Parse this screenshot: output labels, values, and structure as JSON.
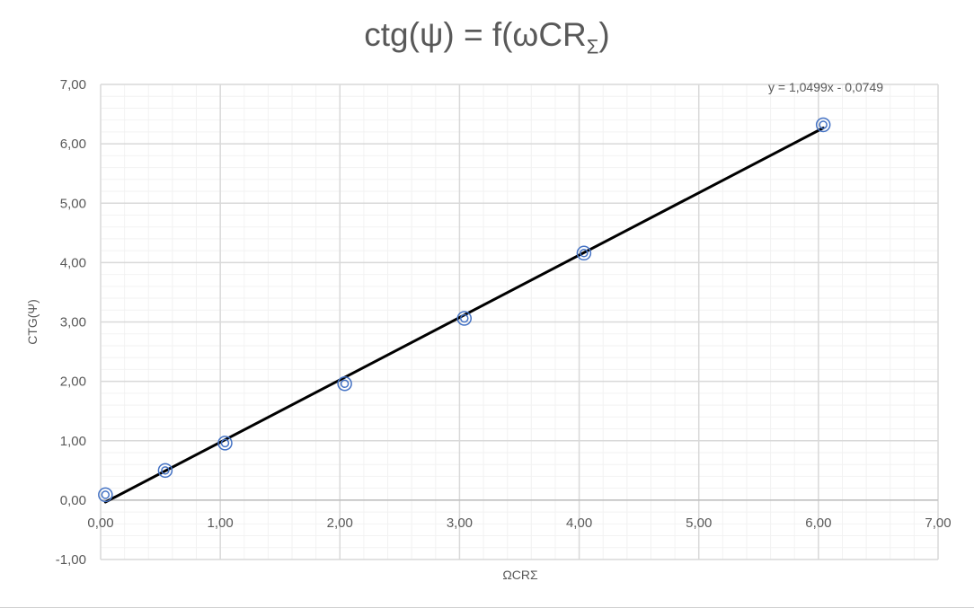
{
  "chart_data": {
    "type": "scatter",
    "title_main": "ctg(ψ) = f(ωCR",
    "title_sub": "Σ",
    "title_end": ")",
    "xlabel": "ΩCRΣ",
    "ylabel": "CTG(Ψ)",
    "xlim": [
      0,
      7
    ],
    "ylim": [
      -1,
      7
    ],
    "x_major_step": 1,
    "y_major_step": 1,
    "x_minor_step": 0.2,
    "y_minor_step": 0.2,
    "x_ticks": [
      "0,00",
      "1,00",
      "2,00",
      "3,00",
      "4,00",
      "5,00",
      "6,00",
      "7,00"
    ],
    "y_ticks": [
      "-1,00",
      "0,00",
      "1,00",
      "2,00",
      "3,00",
      "4,00",
      "5,00",
      "6,00",
      "7,00"
    ],
    "grid": true,
    "series": [
      {
        "marker": "double-circle",
        "marker_color": "#4472c4",
        "points": [
          {
            "x": 0.04,
            "y": 0.09
          },
          {
            "x": 0.54,
            "y": 0.5
          },
          {
            "x": 1.04,
            "y": 0.96
          },
          {
            "x": 2.04,
            "y": 1.96
          },
          {
            "x": 3.04,
            "y": 3.06
          },
          {
            "x": 4.04,
            "y": 4.16
          },
          {
            "x": 6.04,
            "y": 6.32
          }
        ]
      }
    ],
    "trendline": {
      "slope": 1.0499,
      "intercept": -0.0749,
      "x_start": 0.04,
      "x_end": 6.04,
      "color": "#000000",
      "equation": "y = 1,0499x - 0,0749"
    },
    "colors": {
      "text": "#595959",
      "major_grid": "#d9d9d9",
      "minor_grid": "#f2f2f2"
    }
  }
}
